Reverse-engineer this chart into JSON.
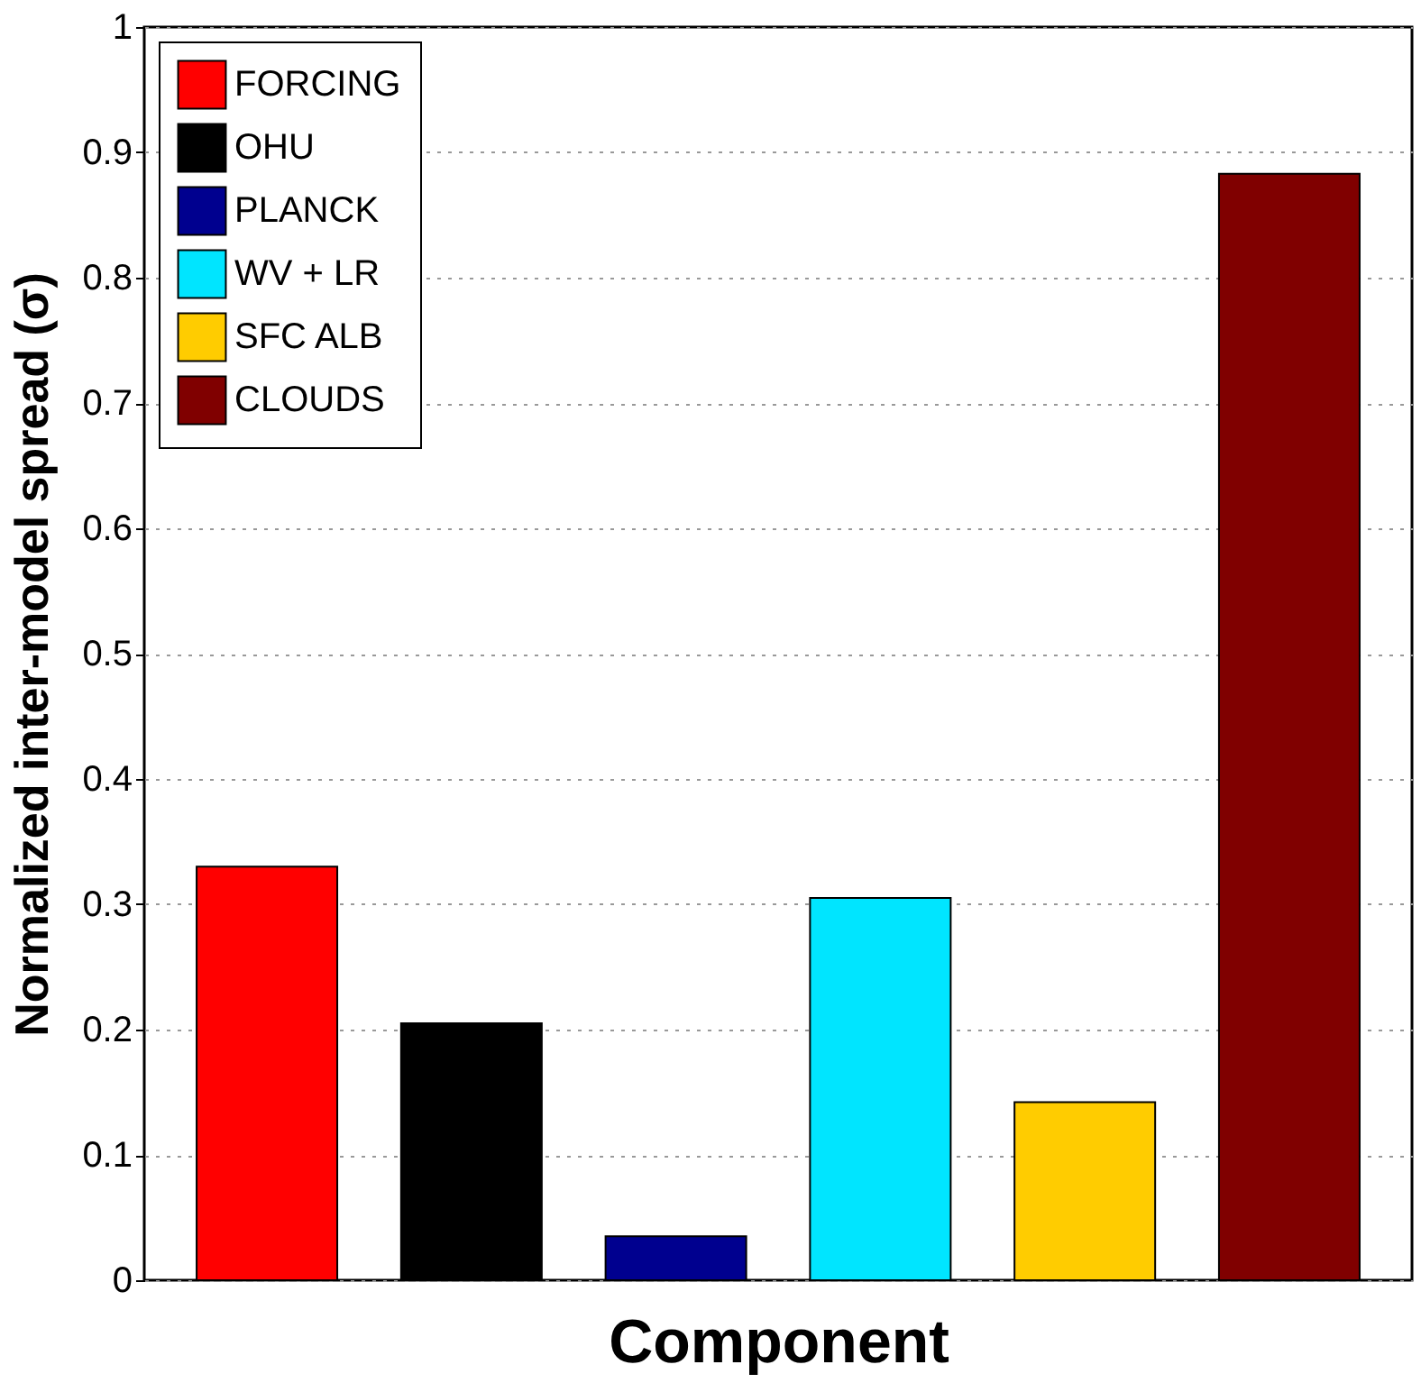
{
  "chart_data": {
    "type": "bar",
    "xlabel": "Component",
    "ylabel": "Normalized inter-model spread (σ)",
    "categories": [
      null,
      null,
      null,
      null,
      null,
      null
    ],
    "series": [
      {
        "name": "FORCING",
        "color": "#ff0000",
        "values": [
          0.33,
          null,
          null,
          null,
          null,
          null
        ]
      },
      {
        "name": "OHU",
        "color": "#000000",
        "values": [
          null,
          0.205,
          null,
          null,
          null,
          null
        ]
      },
      {
        "name": "PLANCK",
        "color": "#00008f",
        "values": [
          null,
          null,
          0.035,
          null,
          null,
          null
        ]
      },
      {
        "name": "WV + LR",
        "color": "#00e5ff",
        "values": [
          null,
          null,
          null,
          0.305,
          null,
          null
        ]
      },
      {
        "name": "SFC ALB",
        "color": "#ffcc00",
        "values": [
          null,
          null,
          null,
          null,
          0.142,
          null
        ]
      },
      {
        "name": "CLOUDS",
        "color": "#800000",
        "values": [
          null,
          null,
          null,
          null,
          null,
          0.883
        ]
      }
    ],
    "ylim": [
      0,
      1
    ],
    "yticks": [
      0,
      0.1,
      0.2,
      0.3,
      0.4,
      0.5,
      0.6,
      0.7,
      0.8,
      0.9,
      1
    ],
    "grid": "y",
    "legend": "top left",
    "tick_labels": "y"
  }
}
